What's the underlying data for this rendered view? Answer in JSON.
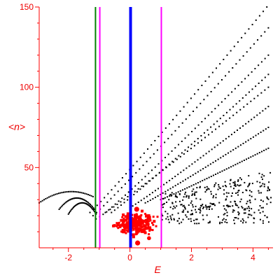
{
  "chart_data": {
    "type": "scatter",
    "title": "",
    "xlabel": "E",
    "ylabel": "<n>",
    "xlim": [
      -2.95,
      4.65
    ],
    "ylim": [
      0,
      150
    ],
    "xticks": [
      -2,
      0,
      2,
      4
    ],
    "yticks": [
      50,
      100,
      150
    ],
    "grid": false,
    "axis_color": "#ff0000",
    "vertical_lines": [
      {
        "x": -1.12,
        "color": "#008000",
        "weight": "thin"
      },
      {
        "x": -0.98,
        "color": "#ff00ff",
        "weight": "thin"
      },
      {
        "x": 0.02,
        "color": "#0000ff",
        "weight": "thick"
      },
      {
        "x": 1.02,
        "color": "#ff00ff",
        "weight": "thin"
      }
    ],
    "series": [
      {
        "color": "#000000",
        "marker": "small-dot",
        "description_points": "dense curve families",
        "curves": [
          {
            "x_range": [
              -1.3,
              4.45
            ],
            "y_start": 22,
            "y_end": 150
          },
          {
            "x_range": [
              -1.2,
              4.5
            ],
            "y_start": 20,
            "y_end": 137
          },
          {
            "x_range": [
              -0.8,
              4.5
            ],
            "y_start": 22,
            "y_end": 120
          },
          {
            "x_range": [
              -0.6,
              4.5
            ],
            "y_start": 22,
            "y_end": 108
          },
          {
            "x_range": [
              -1.1,
              4.5
            ],
            "y_start": 18,
            "y_end": 100
          },
          {
            "x_range": [
              0.0,
              4.5
            ],
            "y_start": 25,
            "y_end": 88
          },
          {
            "x_range": [
              0.5,
              4.5
            ],
            "y_start": 28,
            "y_end": 75
          },
          {
            "x_range": [
              1.0,
              4.5
            ],
            "y_start": 30,
            "y_end": 62
          }
        ],
        "arc": {
          "x_range": [
            -2.95,
            -1.2
          ],
          "y_peak": 35,
          "x_peak": -1.9
        },
        "arc2": {
          "x_range": [
            -2.3,
            -1.15
          ],
          "y_peak": 31
        },
        "arc3": {
          "x_range": [
            -2.0,
            -1.1
          ],
          "y_peak": 28
        },
        "cloud": {
          "x_range": [
            1.0,
            4.6
          ],
          "y_range": [
            15,
            48
          ]
        }
      },
      {
        "color": "#ff0000",
        "marker": "square",
        "cloud": {
          "x_range": [
            -1.0,
            1.0
          ],
          "y_range": [
            5,
            28
          ],
          "center": [
            0.2,
            15
          ]
        }
      }
    ]
  }
}
